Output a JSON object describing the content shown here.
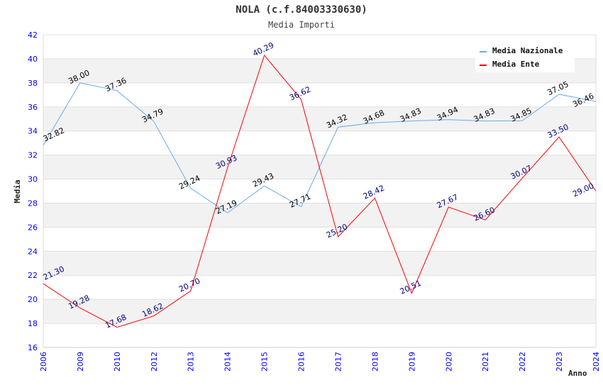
{
  "chart_data": {
    "type": "line",
    "title": "NOLA (c.f.84003330630)",
    "subtitle": "Media Importi",
    "xlabel": "Anno",
    "ylabel": "Media",
    "ylim": [
      16,
      42
    ],
    "yticks": [
      16,
      18,
      20,
      22,
      24,
      26,
      28,
      30,
      32,
      34,
      36,
      38,
      40,
      42
    ],
    "categories": [
      "2006",
      "2009",
      "2010",
      "2012",
      "2013",
      "2014",
      "2015",
      "2016",
      "2017",
      "2018",
      "2019",
      "2020",
      "2021",
      "2022",
      "2023",
      "2024"
    ],
    "legend_position": "top-right",
    "series": [
      {
        "name": "Media Nazionale",
        "color": "#6aaaf0",
        "label_color": "#000000",
        "values": [
          32.82,
          38.0,
          37.36,
          34.79,
          29.24,
          27.19,
          29.43,
          27.71,
          34.32,
          34.68,
          34.83,
          34.94,
          34.83,
          34.85,
          37.05,
          36.46
        ]
      },
      {
        "name": "Media Ente",
        "color": "#ff0000",
        "label_color": "#000080",
        "values": [
          21.3,
          19.28,
          17.68,
          18.62,
          20.7,
          30.93,
          40.29,
          36.62,
          25.2,
          28.42,
          20.51,
          27.67,
          26.6,
          30.07,
          33.5,
          29.0
        ]
      }
    ]
  }
}
